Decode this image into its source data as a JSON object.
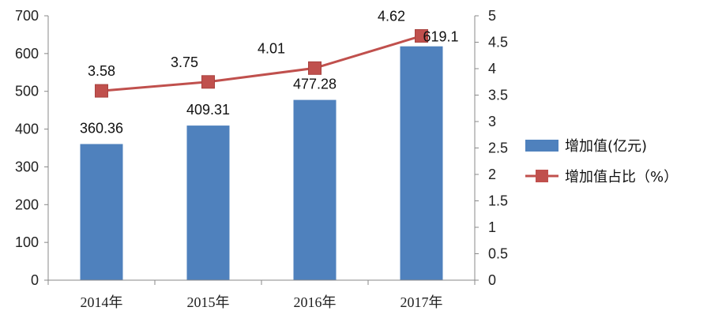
{
  "chart_data": {
    "type": "bar",
    "categories": [
      "2014年",
      "2015年",
      "2016年",
      "2017年"
    ],
    "series": [
      {
        "name": "增加值(亿元)",
        "type": "bar",
        "axis": "left",
        "color": "#4F81BD",
        "values": [
          360.36,
          409.31,
          477.28,
          619.1
        ],
        "labels": [
          "360.36",
          "409.31",
          "477.28",
          "619.1"
        ]
      },
      {
        "name": "增加值占比（%）",
        "type": "line",
        "axis": "right",
        "color": "#C0504D",
        "values": [
          3.58,
          3.75,
          4.01,
          4.62
        ],
        "labels": [
          "3.58",
          "3.75",
          "4.01",
          "4.62"
        ]
      }
    ],
    "y_left": {
      "ylim": [
        0,
        700
      ],
      "ticks": [
        "0",
        "100",
        "200",
        "300",
        "400",
        "500",
        "600",
        "700"
      ]
    },
    "y_right": {
      "ylim": [
        0,
        5
      ],
      "ticks": [
        "0",
        "0.5",
        "1",
        "1.5",
        "2",
        "2.5",
        "3",
        "3.5",
        "4",
        "4.5",
        "5"
      ]
    },
    "grid": false,
    "legend": "right"
  }
}
